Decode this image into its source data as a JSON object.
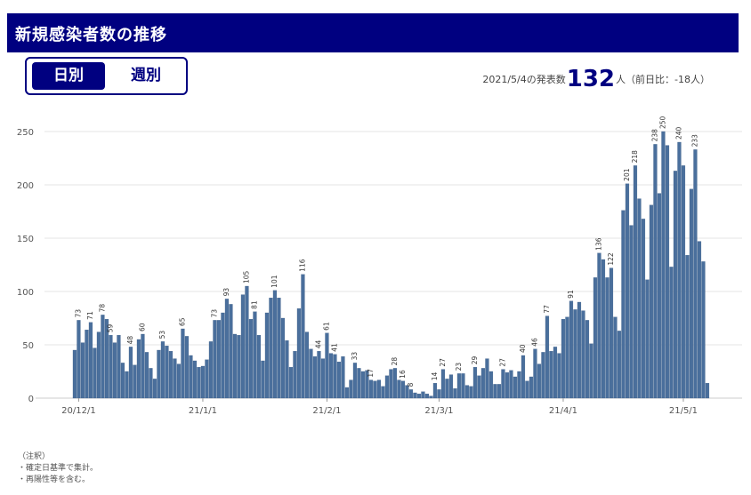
{
  "header": {
    "title": "新規感染者数の推移"
  },
  "toggle": {
    "daily_label": "日別",
    "weekly_label": "週別"
  },
  "summary": {
    "date_prefix": "2021/5/4の発表数",
    "count": "132",
    "unit": "人",
    "diff": "（前日比：-18人）"
  },
  "notes": {
    "heading": "（注釈）",
    "line1": "・確定日基準で集計。",
    "line2": "・再陽性等を含む。"
  },
  "colors": {
    "header_bg": "#000080",
    "bar": "#4a6f9c",
    "bar_edge": "#3a5a85",
    "grid": "#e6e6e6"
  },
  "chart_data": {
    "type": "bar",
    "start_date": "2020-11-30",
    "ylim": [
      0,
      250
    ],
    "yticks": [
      0,
      50,
      100,
      150,
      200,
      250
    ],
    "x_tick_labels": [
      {
        "date": "2020-12-01",
        "label": "20/12/1"
      },
      {
        "date": "2021-01-01",
        "label": "21/1/1"
      },
      {
        "date": "2021-02-01",
        "label": "21/2/1"
      },
      {
        "date": "2021-03-01",
        "label": "21/3/1"
      },
      {
        "date": "2021-04-01",
        "label": "21/4/1"
      },
      {
        "date": "2021-05-01",
        "label": "21/5/1"
      }
    ],
    "labeled_values": [
      73,
      71,
      78,
      59,
      48,
      60,
      53,
      65,
      73,
      93,
      105,
      81,
      101,
      116,
      44,
      61,
      41,
      33,
      17,
      28,
      16,
      8,
      14,
      27,
      23,
      29,
      27,
      40,
      46,
      77,
      91,
      136,
      122,
      201,
      218,
      238,
      250,
      240,
      233
    ],
    "values": [
      45,
      73,
      52,
      64,
      71,
      47,
      62,
      78,
      74,
      59,
      52,
      59,
      33,
      25,
      48,
      31,
      55,
      60,
      43,
      28,
      18,
      45,
      53,
      49,
      44,
      37,
      32,
      65,
      58,
      40,
      35,
      29,
      30,
      36,
      53,
      73,
      73,
      80,
      93,
      88,
      60,
      59,
      97,
      105,
      74,
      81,
      59,
      35,
      80,
      94,
      101,
      94,
      75,
      54,
      29,
      44,
      84,
      116,
      62,
      46,
      39,
      44,
      37,
      61,
      42,
      41,
      34,
      39,
      10,
      17,
      33,
      28,
      25,
      26,
      17,
      16,
      17,
      11,
      21,
      27,
      28,
      17,
      16,
      12,
      8,
      5,
      4,
      6,
      4,
      2,
      14,
      8,
      27,
      18,
      22,
      9,
      23,
      23,
      12,
      11,
      29,
      21,
      28,
      37,
      25,
      13,
      13,
      27,
      24,
      26,
      20,
      25,
      40,
      16,
      20,
      46,
      32,
      43,
      77,
      44,
      48,
      42,
      74,
      76,
      91,
      83,
      90,
      82,
      73,
      51,
      113,
      136,
      130,
      113,
      122,
      76,
      63,
      176,
      201,
      162,
      218,
      187,
      168,
      111,
      181,
      238,
      192,
      250,
      237,
      123,
      213,
      240,
      218,
      134,
      196,
      233,
      147,
      128,
      14
    ],
    "xlabel": "",
    "ylabel": ""
  }
}
